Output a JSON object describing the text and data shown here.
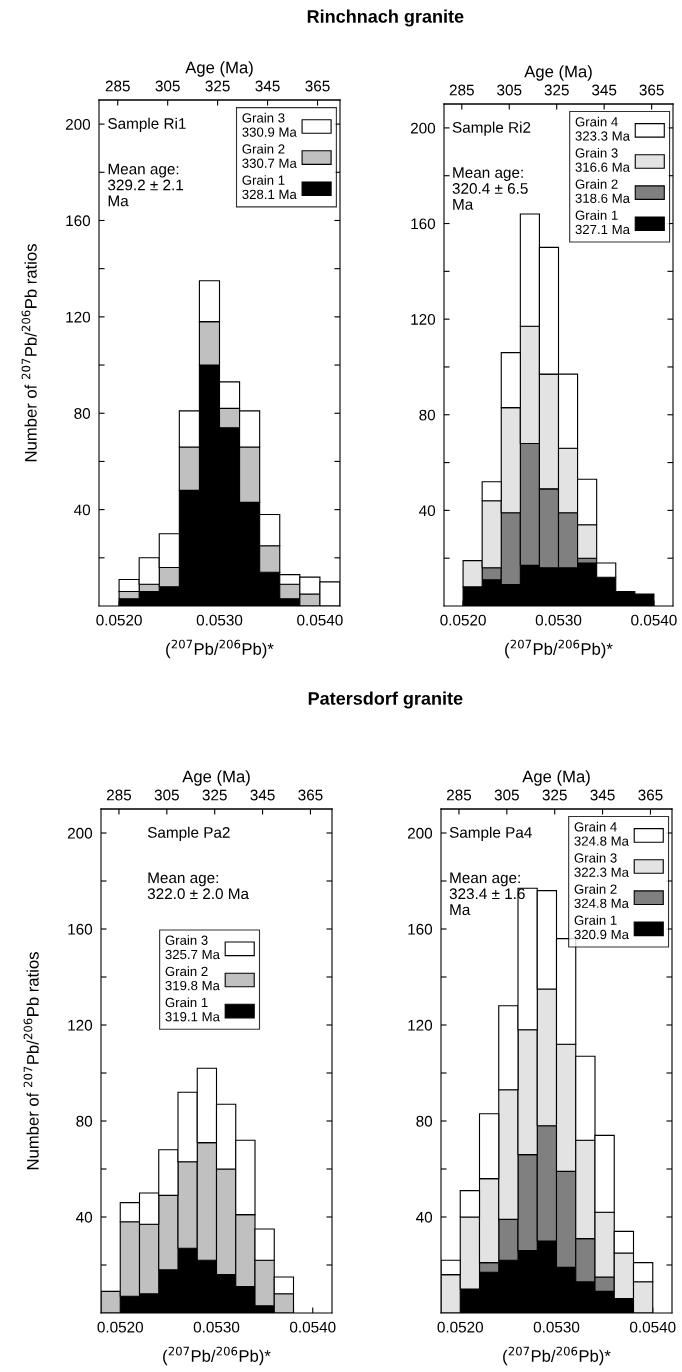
{
  "chart_data": [
    {
      "type": "bar",
      "title": "Rinchnach granite",
      "ylabel": "Number of $^{207}$Pb/$^{206}$Pb ratios",
      "xlabel": "($^{207}$Pb/$^{206}$Pb)*",
      "x2label": "Age (Ma)",
      "stacked": true,
      "legend": "top right",
      "x": [
        0.0521,
        0.0523,
        0.0525,
        0.0527,
        0.0529,
        0.0531,
        0.0533,
        0.0535,
        0.0537,
        0.0539,
        0.0541
      ],
      "series": [
        {
          "name": "Grain 1\n328.1 Ma",
          "color": "#000000",
          "values": [
            3,
            6,
            8,
            48,
            100,
            74,
            43,
            14,
            3,
            0,
            0
          ]
        },
        {
          "name": "Grain 2\n330.7 Ma",
          "color": "#c0c0c0",
          "values": [
            3,
            3,
            8,
            18,
            18,
            8,
            23,
            11,
            6,
            5,
            0
          ]
        },
        {
          "name": "Grain 3\n330.9 Ma",
          "color": "#ffffff",
          "values": [
            5,
            11,
            14,
            15,
            17,
            11,
            15,
            13,
            4,
            7,
            10
          ]
        }
      ],
      "xlim": [
        0.0518,
        0.0542
      ],
      "xticks": [
        {
          "value": 0.052,
          "label": "0.0520"
        },
        {
          "value": 0.0522,
          "label": null
        },
        {
          "value": 0.0524,
          "label": null
        },
        {
          "value": 0.0526,
          "label": null
        },
        {
          "value": 0.0528,
          "label": null
        },
        {
          "value": 0.053,
          "label": "0.0530"
        },
        {
          "value": 0.0532,
          "label": null
        },
        {
          "value": 0.0534,
          "label": null
        },
        {
          "value": 0.0536,
          "label": null
        },
        {
          "value": 0.0538,
          "label": null
        },
        {
          "value": 0.054,
          "label": "0.0540"
        }
      ],
      "x2lim": [
        277.5,
        374
      ],
      "x2ticks": [
        285,
        305,
        325,
        345,
        365
      ],
      "ylim": [
        0,
        210
      ],
      "yticks": [
        {
          "value": 20,
          "label": null
        },
        40,
        {
          "value": 60,
          "label": null
        },
        80,
        {
          "value": 100,
          "label": null
        },
        120,
        {
          "value": 140,
          "label": null
        },
        160,
        {
          "value": 180,
          "label": null
        },
        200
      ],
      "annotations": [
        "Sample Ri1",
        "Mean age:\n329.2 ± 2.1\nMa"
      ]
    },
    {
      "type": "bar",
      "xlabel": "($^{207}$Pb/$^{206}$Pb)*",
      "x2label": "Age (Ma)",
      "stacked": true,
      "legend": "top right",
      "x": [
        0.0521,
        0.0523,
        0.0525,
        0.0527,
        0.0529,
        0.0531,
        0.0533,
        0.0535,
        0.0537,
        0.0539
      ],
      "series": [
        {
          "name": "Grain 1\n327.1 Ma",
          "color": "#000000",
          "values": [
            8,
            11,
            9,
            17,
            16,
            16,
            18,
            12,
            6,
            5
          ]
        },
        {
          "name": "Grain 2\n318.6 Ma",
          "color": "#808080",
          "values": [
            0,
            5,
            30,
            51,
            33,
            23,
            2,
            0,
            0,
            0
          ]
        },
        {
          "name": "Grain 3\n316.6 Ma",
          "color": "#e3e3e3",
          "values": [
            11,
            28,
            44,
            49,
            48,
            27,
            14,
            0,
            0,
            0
          ]
        },
        {
          "name": "Grain 4\n323.3 Ma",
          "color": "#ffffff",
          "values": [
            0,
            8,
            23,
            47,
            53,
            31,
            19,
            6,
            0,
            0
          ]
        }
      ],
      "xlim": [
        0.0518,
        0.0542
      ],
      "xticks": [
        {
          "value": 0.052,
          "label": "0.0520"
        },
        {
          "value": 0.0522,
          "label": null
        },
        {
          "value": 0.0524,
          "label": null
        },
        {
          "value": 0.0526,
          "label": null
        },
        {
          "value": 0.0528,
          "label": null
        },
        {
          "value": 0.053,
          "label": "0.0530"
        },
        {
          "value": 0.0532,
          "label": null
        },
        {
          "value": 0.0534,
          "label": null
        },
        {
          "value": 0.0536,
          "label": null
        },
        {
          "value": 0.0538,
          "label": null
        },
        {
          "value": 0.054,
          "label": "0.0540"
        }
      ],
      "x2lim": [
        277.5,
        374
      ],
      "x2ticks": [
        285,
        305,
        325,
        345,
        365
      ],
      "ylim": [
        0,
        210
      ],
      "yticks": [
        {
          "value": 20,
          "label": null
        },
        40,
        {
          "value": 60,
          "label": null
        },
        80,
        {
          "value": 100,
          "label": null
        },
        120,
        {
          "value": 140,
          "label": null
        },
        160,
        {
          "value": 180,
          "label": null
        },
        200
      ],
      "annotations": [
        "Sample Ri2",
        "Mean age:\n320.4 ± 6.5\nMa"
      ]
    },
    {
      "type": "bar",
      "title": "Patersdorf granite",
      "ylabel": "Number of $^{207}$Pb/$^{206}$Pb ratios",
      "xlabel": "($^{207}$Pb/$^{206}$Pb)*",
      "x2label": "Age (Ma)",
      "stacked": true,
      "legend": "top",
      "x": [
        0.0519,
        0.0521,
        0.0523,
        0.0525,
        0.0527,
        0.0529,
        0.0531,
        0.0533,
        0.0535,
        0.0537
      ],
      "series": [
        {
          "name": "Grain 1\n319.1 Ma",
          "color": "#000000",
          "values": [
            0,
            7,
            8,
            18,
            27,
            22,
            16,
            11,
            3,
            0
          ]
        },
        {
          "name": "Grain 2\n319.8 Ma",
          "color": "#c0c0c0",
          "values": [
            9,
            31,
            29,
            31,
            36,
            49,
            44,
            30,
            19,
            8
          ]
        },
        {
          "name": "Grain 3\n325.7 Ma",
          "color": "#ffffff",
          "values": [
            0,
            8,
            13,
            19,
            29,
            31,
            27,
            31,
            13,
            7
          ]
        }
      ],
      "xlim": [
        0.0518,
        0.0542
      ],
      "xticks": [
        {
          "value": 0.052,
          "label": "0.0520"
        },
        {
          "value": 0.0522,
          "label": null
        },
        {
          "value": 0.0524,
          "label": null
        },
        {
          "value": 0.0526,
          "label": null
        },
        {
          "value": 0.0528,
          "label": null
        },
        {
          "value": 0.053,
          "label": "0.0530"
        },
        {
          "value": 0.0532,
          "label": null
        },
        {
          "value": 0.0534,
          "label": null
        },
        {
          "value": 0.0536,
          "label": null
        },
        {
          "value": 0.0538,
          "label": null
        },
        {
          "value": 0.054,
          "label": "0.0540"
        }
      ],
      "x2lim": [
        277.5,
        374
      ],
      "x2ticks": [
        285,
        305,
        325,
        345,
        365
      ],
      "ylim": [
        0,
        210
      ],
      "yticks": [
        {
          "value": 20,
          "label": null
        },
        40,
        {
          "value": 60,
          "label": null
        },
        80,
        {
          "value": 100,
          "label": null
        },
        120,
        {
          "value": 140,
          "label": null
        },
        160,
        {
          "value": 180,
          "label": null
        },
        200
      ],
      "annotations": [
        "Sample Pa2",
        "Mean age:\n322.0 ± 2.0 Ma"
      ]
    },
    {
      "type": "bar",
      "xlabel": "($^{207}$Pb/$^{206}$Pb)*",
      "x2label": "Age (Ma)",
      "stacked": true,
      "legend": "top right",
      "x": [
        0.0519,
        0.0521,
        0.0523,
        0.0525,
        0.0527,
        0.0529,
        0.0531,
        0.0533,
        0.0535,
        0.0537,
        0.0539
      ],
      "series": [
        {
          "name": "Grain 1\n320.9 Ma",
          "color": "#000000",
          "values": [
            0,
            10,
            17,
            22,
            26,
            30,
            19,
            13,
            9,
            6,
            0
          ]
        },
        {
          "name": "Grain 2\n324.8 Ma",
          "color": "#808080",
          "values": [
            0,
            0,
            4,
            17,
            40,
            48,
            40,
            18,
            6,
            0,
            0
          ]
        },
        {
          "name": "Grain 3\n322.3 Ma",
          "color": "#e3e3e3",
          "values": [
            16,
            30,
            35,
            54,
            52,
            57,
            53,
            41,
            27,
            19,
            13
          ]
        },
        {
          "name": "Grain 4\n324.8 Ma",
          "color": "#ffffff",
          "values": [
            6,
            11,
            27,
            35,
            59,
            41,
            44,
            35,
            32,
            9,
            8
          ]
        }
      ],
      "xlim": [
        0.0518,
        0.0542
      ],
      "xticks": [
        {
          "value": 0.052,
          "label": "0.0520"
        },
        {
          "value": 0.0522,
          "label": null
        },
        {
          "value": 0.0524,
          "label": null
        },
        {
          "value": 0.0526,
          "label": null
        },
        {
          "value": 0.0528,
          "label": null
        },
        {
          "value": 0.053,
          "label": "0.0530"
        },
        {
          "value": 0.0532,
          "label": null
        },
        {
          "value": 0.0534,
          "label": null
        },
        {
          "value": 0.0536,
          "label": null
        },
        {
          "value": 0.0538,
          "label": null
        },
        {
          "value": 0.054,
          "label": "0.0540"
        }
      ],
      "x2lim": [
        277.5,
        374
      ],
      "x2ticks": [
        285,
        305,
        325,
        345,
        365
      ],
      "ylim": [
        0,
        210
      ],
      "yticks": [
        {
          "value": 20,
          "label": null
        },
        40,
        {
          "value": 60,
          "label": null
        },
        80,
        {
          "value": 100,
          "label": null
        },
        120,
        {
          "value": 140,
          "label": null
        },
        160,
        {
          "value": 180,
          "label": null
        },
        200
      ],
      "annotations": [
        "Sample Pa4",
        "Mean age:\n323.4 ± 1.6\nMa"
      ]
    }
  ]
}
